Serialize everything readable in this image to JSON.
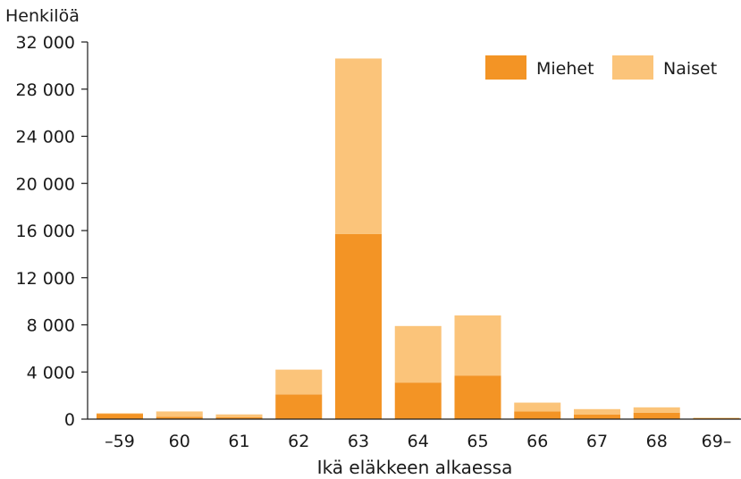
{
  "chart_data": {
    "type": "bar",
    "stacked": true,
    "ylabel": "Henkilöä",
    "xlabel": "Ikä eläkkeen alkaessa",
    "categories": [
      "–59",
      "60",
      "61",
      "62",
      "63",
      "64",
      "65",
      "66",
      "67",
      "68",
      "69–"
    ],
    "series": [
      {
        "name": "Miehet",
        "color": "#f39425",
        "values": [
          450,
          200,
          150,
          2100,
          15700,
          3100,
          3700,
          650,
          400,
          550,
          80
        ]
      },
      {
        "name": "Naiset",
        "color": "#fbc47a",
        "values": [
          50,
          450,
          250,
          2100,
          14900,
          4800,
          5100,
          750,
          450,
          450,
          40
        ]
      }
    ],
    "ylim": [
      0,
      32000
    ],
    "yticks": [
      0,
      4000,
      8000,
      12000,
      16000,
      20000,
      24000,
      28000,
      32000
    ],
    "ytick_labels": [
      "0",
      "4 000",
      "8 000",
      "12 000",
      "16 000",
      "20 000",
      "24 000",
      "28 000",
      "32 000"
    ],
    "grid": false,
    "legend": "top-right"
  }
}
